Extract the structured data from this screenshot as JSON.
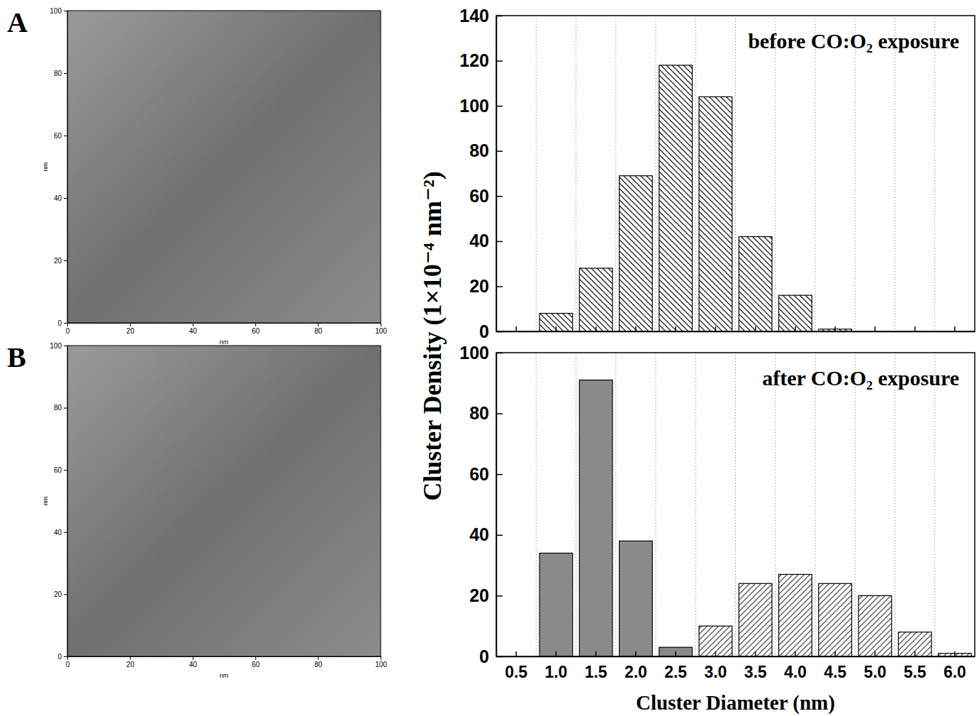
{
  "chart_data": [
    {
      "type": "image",
      "label": "A",
      "x_label": "nm",
      "y_label": "nm",
      "xlim": [
        0,
        100
      ],
      "xticks": [
        0,
        20,
        40,
        60,
        80,
        100
      ],
      "ylim": [
        0,
        100
      ],
      "yticks": [
        0,
        20,
        40,
        60,
        80,
        100
      ]
    },
    {
      "type": "image",
      "label": "B",
      "x_label": "nm",
      "y_label": "nm",
      "xlim": [
        0,
        100
      ],
      "xticks": [
        0,
        20,
        40,
        60,
        80,
        100
      ],
      "ylim": [
        0,
        100
      ],
      "yticks": [
        0,
        20,
        40,
        60,
        80,
        100
      ]
    },
    {
      "type": "bar",
      "title": "before CO:O₂ exposure",
      "y_label": "Cluster Density (1×10⁻⁴ nm⁻²)",
      "categories": [
        null,
        null,
        null,
        null,
        null,
        null,
        null,
        null,
        null,
        null,
        null,
        null
      ],
      "values": [
        0,
        8,
        28,
        69,
        118,
        104,
        42,
        16,
        1,
        0,
        0,
        0
      ],
      "color": "#222222",
      "marker": "hatch",
      "ylim": [
        0,
        140
      ],
      "yticks": [
        0,
        20,
        40,
        60,
        80,
        100,
        120,
        140
      ],
      "grid": true,
      "tick_labels": "y"
    },
    {
      "type": "bar",
      "title": "after CO:O₂ exposure",
      "x_label": "Cluster Diameter (nm)",
      "categories": [
        "0.5",
        "1.0",
        "1.5",
        "2.0",
        "2.5",
        "3.0",
        "3.5",
        "4.0",
        "4.5",
        "5.0",
        "5.5",
        "6.0"
      ],
      "series": [
        {
          "color": "#8a8a8a",
          "marker": "solid",
          "values": [
            null,
            34,
            91,
            38,
            3,
            null,
            null,
            null,
            null,
            null,
            null,
            null
          ]
        },
        {
          "color": "#555555",
          "marker": "hatch",
          "values": [
            null,
            null,
            null,
            null,
            null,
            10,
            24,
            27,
            24,
            20,
            8,
            1
          ]
        }
      ],
      "ylim": [
        0,
        100
      ],
      "yticks": [
        0,
        20,
        40,
        60,
        80,
        100
      ],
      "grid": true
    }
  ]
}
